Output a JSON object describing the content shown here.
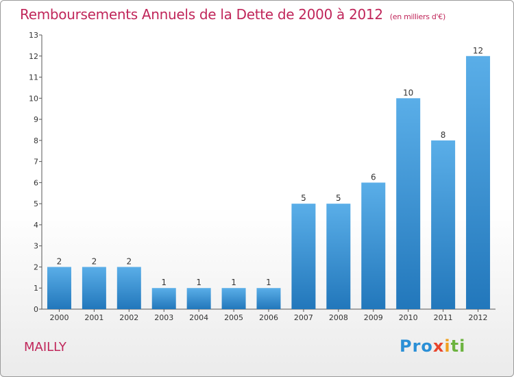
{
  "header": {
    "title": "Remboursements Annuels de la Dette de 2000 à 2012",
    "unit": "(en milliers d'€)"
  },
  "footer": {
    "commune": "MAILLY",
    "logo": [
      "Pro",
      "x",
      "i",
      "ti"
    ]
  },
  "colors": {
    "title": "#c0265a",
    "bar_top": "#5aaee8",
    "bar_bottom": "#2277bb",
    "axis": "#555555"
  },
  "chart_data": {
    "type": "bar",
    "title": "Remboursements Annuels de la Dette de 2000 à 2012",
    "subtitle": "(en milliers d'€)",
    "categories": [
      "2000",
      "2001",
      "2002",
      "2003",
      "2004",
      "2005",
      "2006",
      "2007",
      "2008",
      "2009",
      "2010",
      "2011",
      "2012"
    ],
    "values": [
      2,
      2,
      2,
      1,
      1,
      1,
      1,
      5,
      5,
      6,
      10,
      8,
      12
    ],
    "ylim": [
      0,
      13
    ],
    "yticks": [
      0,
      1,
      2,
      3,
      4,
      5,
      6,
      7,
      8,
      9,
      10,
      11,
      12,
      13
    ],
    "grid": false,
    "xlabel": "",
    "ylabel": ""
  }
}
